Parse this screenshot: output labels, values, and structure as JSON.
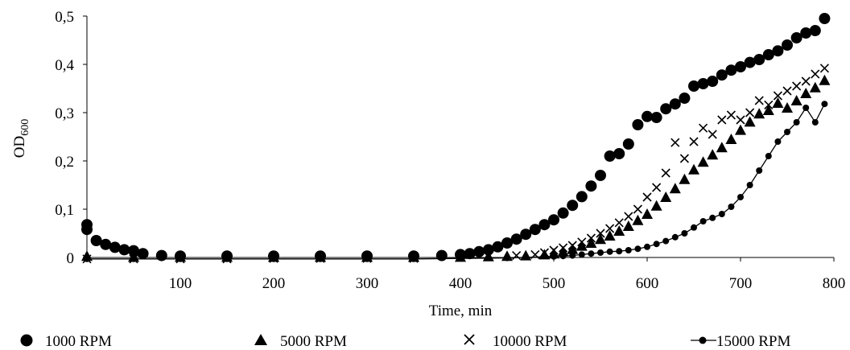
{
  "chart_data": {
    "type": "scatter",
    "xlabel": "Time, min",
    "ylabel": "OD",
    "ylabel_sub": "600",
    "xlim": [
      0,
      800
    ],
    "ylim": [
      0,
      0.5
    ],
    "x_ticks": [
      100,
      200,
      300,
      400,
      500,
      600,
      700,
      800
    ],
    "x_tick_labels": [
      "100",
      "200",
      "300",
      "400",
      "500",
      "600",
      "700",
      "800"
    ],
    "y_ticks": [
      0,
      0.1,
      0.2,
      0.3,
      0.4,
      0.5
    ],
    "y_tick_labels": [
      "0",
      "0,1",
      "0,2",
      "0,3",
      "0,4",
      "0,5"
    ],
    "grid": false,
    "legend_position": "bottom",
    "series": [
      {
        "name": "1000 RPM",
        "marker": "circle",
        "x": [
          0,
          0,
          10,
          20,
          30,
          40,
          50,
          60,
          80,
          100,
          150,
          200,
          250,
          300,
          350,
          380,
          400,
          410,
          420,
          430,
          440,
          450,
          460,
          470,
          480,
          490,
          500,
          510,
          520,
          530,
          540,
          550,
          560,
          570,
          580,
          590,
          600,
          610,
          620,
          630,
          640,
          650,
          660,
          670,
          680,
          690,
          700,
          710,
          720,
          730,
          740,
          750,
          760,
          770,
          780,
          790
        ],
        "y": [
          0.068,
          0.058,
          0.035,
          0.027,
          0.021,
          0.016,
          0.014,
          0.008,
          0.004,
          0.003,
          0.003,
          0.003,
          0.003,
          0.003,
          0.003,
          0.004,
          0.006,
          0.008,
          0.012,
          0.016,
          0.022,
          0.03,
          0.038,
          0.048,
          0.058,
          0.068,
          0.078,
          0.092,
          0.108,
          0.126,
          0.148,
          0.17,
          0.21,
          0.215,
          0.235,
          0.275,
          0.292,
          0.29,
          0.308,
          0.318,
          0.33,
          0.355,
          0.36,
          0.365,
          0.378,
          0.388,
          0.395,
          0.404,
          0.41,
          0.42,
          0.428,
          0.44,
          0.455,
          0.465,
          0.47,
          0.495
        ]
      },
      {
        "name": "5000 RPM",
        "marker": "triangle",
        "x": [
          0,
          50,
          100,
          150,
          200,
          250,
          300,
          350,
          400,
          430,
          450,
          470,
          490,
          500,
          510,
          520,
          530,
          540,
          550,
          560,
          570,
          580,
          590,
          600,
          610,
          620,
          630,
          640,
          650,
          660,
          670,
          680,
          690,
          700,
          710,
          720,
          730,
          740,
          750,
          760,
          770,
          780,
          790
        ],
        "y": [
          0.003,
          0.001,
          0.001,
          0.001,
          0.001,
          0.001,
          0.001,
          0.001,
          0.001,
          0.002,
          0.003,
          0.004,
          0.006,
          0.008,
          0.012,
          0.017,
          0.024,
          0.03,
          0.038,
          0.045,
          0.055,
          0.065,
          0.077,
          0.09,
          0.107,
          0.125,
          0.143,
          0.162,
          0.182,
          0.198,
          0.213,
          0.228,
          0.245,
          0.264,
          0.281,
          0.298,
          0.305,
          0.32,
          0.31,
          0.325,
          0.34,
          0.352,
          0.367
        ]
      },
      {
        "name": "10000 RPM",
        "marker": "x",
        "x": [
          0,
          50,
          100,
          150,
          200,
          250,
          300,
          350,
          400,
          430,
          460,
          480,
          490,
          500,
          510,
          520,
          530,
          540,
          550,
          560,
          570,
          580,
          590,
          600,
          610,
          620,
          630,
          640,
          650,
          660,
          670,
          680,
          690,
          700,
          710,
          720,
          730,
          740,
          750,
          760,
          770,
          780,
          790
        ],
        "y": [
          -0.003,
          -0.003,
          -0.003,
          -0.003,
          -0.002,
          -0.002,
          -0.002,
          -0.002,
          0.001,
          0.002,
          0.004,
          0.006,
          0.01,
          0.015,
          0.02,
          0.025,
          0.032,
          0.04,
          0.05,
          0.06,
          0.072,
          0.085,
          0.1,
          0.125,
          0.145,
          0.175,
          0.238,
          0.205,
          0.24,
          0.268,
          0.255,
          0.285,
          0.295,
          0.285,
          0.3,
          0.325,
          0.316,
          0.335,
          0.345,
          0.355,
          0.365,
          0.38,
          0.392
        ]
      },
      {
        "name": "15000 RPM",
        "marker": "line-dot",
        "x": [
          0,
          50,
          100,
          150,
          200,
          250,
          300,
          350,
          400,
          450,
          500,
          510,
          520,
          530,
          540,
          550,
          560,
          570,
          580,
          590,
          600,
          610,
          620,
          630,
          640,
          650,
          660,
          670,
          680,
          690,
          700,
          710,
          720,
          730,
          740,
          750,
          760,
          770,
          780,
          790
        ],
        "y": [
          -0.003,
          -0.003,
          -0.003,
          -0.003,
          -0.003,
          -0.003,
          -0.003,
          -0.003,
          -0.002,
          -0.001,
          0.002,
          0.003,
          0.004,
          0.006,
          0.008,
          0.01,
          0.012,
          0.013,
          0.015,
          0.018,
          0.022,
          0.028,
          0.034,
          0.042,
          0.05,
          0.062,
          0.075,
          0.082,
          0.09,
          0.105,
          0.125,
          0.15,
          0.18,
          0.21,
          0.24,
          0.26,
          0.28,
          0.31,
          0.28,
          0.318
        ]
      }
    ]
  }
}
